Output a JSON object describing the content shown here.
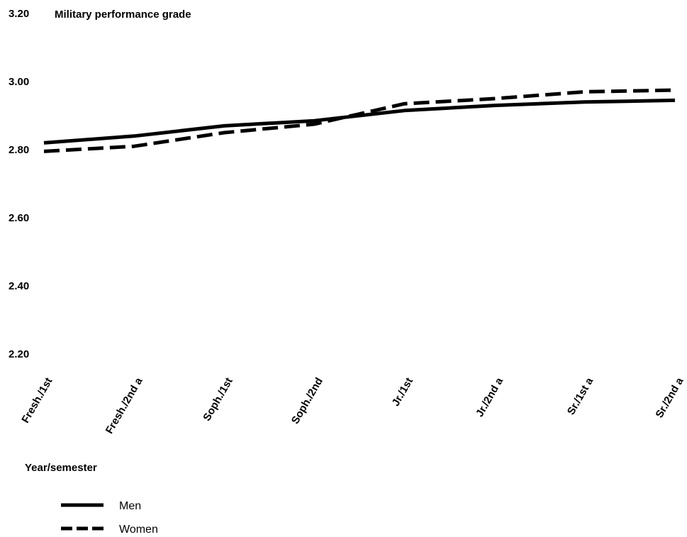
{
  "chart_data": {
    "type": "line",
    "title": "Military performance grade",
    "xlabel": "Year/semester",
    "ylabel": "Military performance grade",
    "categories": [
      "Fresh./1st",
      "Fresh./2nd a",
      "Soph./1st",
      "Soph./2nd",
      "Jr./1st",
      "Jr./2nd a",
      "Sr./1st a",
      "Sr./2nd a"
    ],
    "yticks": [
      "3.20",
      "3.00",
      "2.80",
      "2.60",
      "2.40",
      "2.20"
    ],
    "ylim": [
      2.2,
      3.2
    ],
    "grid": false,
    "legend_position": "bottom-left",
    "series": [
      {
        "name": "Men",
        "values": [
          2.82,
          2.84,
          2.87,
          2.885,
          2.915,
          2.93,
          2.94,
          2.945
        ],
        "style": "solid",
        "color": "#000000"
      },
      {
        "name": "Women",
        "values": [
          2.795,
          2.81,
          2.85,
          2.875,
          2.935,
          2.95,
          2.97,
          2.975
        ],
        "style": "dashed",
        "color": "#000000"
      }
    ]
  }
}
